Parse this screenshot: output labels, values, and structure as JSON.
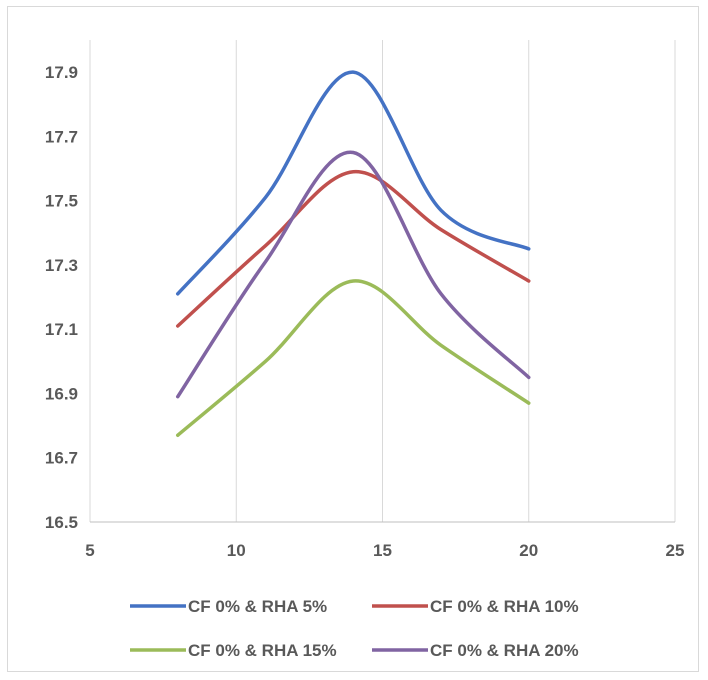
{
  "chart_data": {
    "type": "line",
    "title": "",
    "xlabel": "",
    "ylabel": "",
    "xlim": [
      5,
      25
    ],
    "ylim": [
      16.5,
      18.0
    ],
    "x_ticks": [
      5,
      10,
      15,
      20,
      25
    ],
    "y_ticks": [
      16.5,
      16.7,
      16.9,
      17.1,
      17.3,
      17.5,
      17.7,
      17.9
    ],
    "x_tick_labels": [
      "5",
      "10",
      "15",
      "20",
      "25"
    ],
    "y_tick_labels": [
      "16.5",
      "16.7",
      "16.9",
      "17.1",
      "17.3",
      "17.5",
      "17.7",
      "17.9"
    ],
    "grid": "vertical",
    "legend_position": "bottom",
    "smooth": true,
    "x": [
      8,
      11,
      14,
      17,
      20
    ],
    "series": [
      {
        "name": "CF 0% & RHA 5%",
        "color": "#4472c4",
        "values": [
          17.21,
          17.51,
          17.9,
          17.47,
          17.35
        ]
      },
      {
        "name": "CF 0% & RHA 10%",
        "color": "#c0504d",
        "values": [
          17.11,
          17.36,
          17.59,
          17.41,
          17.25
        ]
      },
      {
        "name": "CF 0% & RHA 15%",
        "color": "#9bbb59",
        "values": [
          16.77,
          17.0,
          17.25,
          17.05,
          16.87
        ]
      },
      {
        "name": "CF 0% & RHA 20%",
        "color": "#8064a2",
        "values": [
          16.89,
          17.31,
          17.65,
          17.21,
          16.95
        ]
      }
    ]
  }
}
